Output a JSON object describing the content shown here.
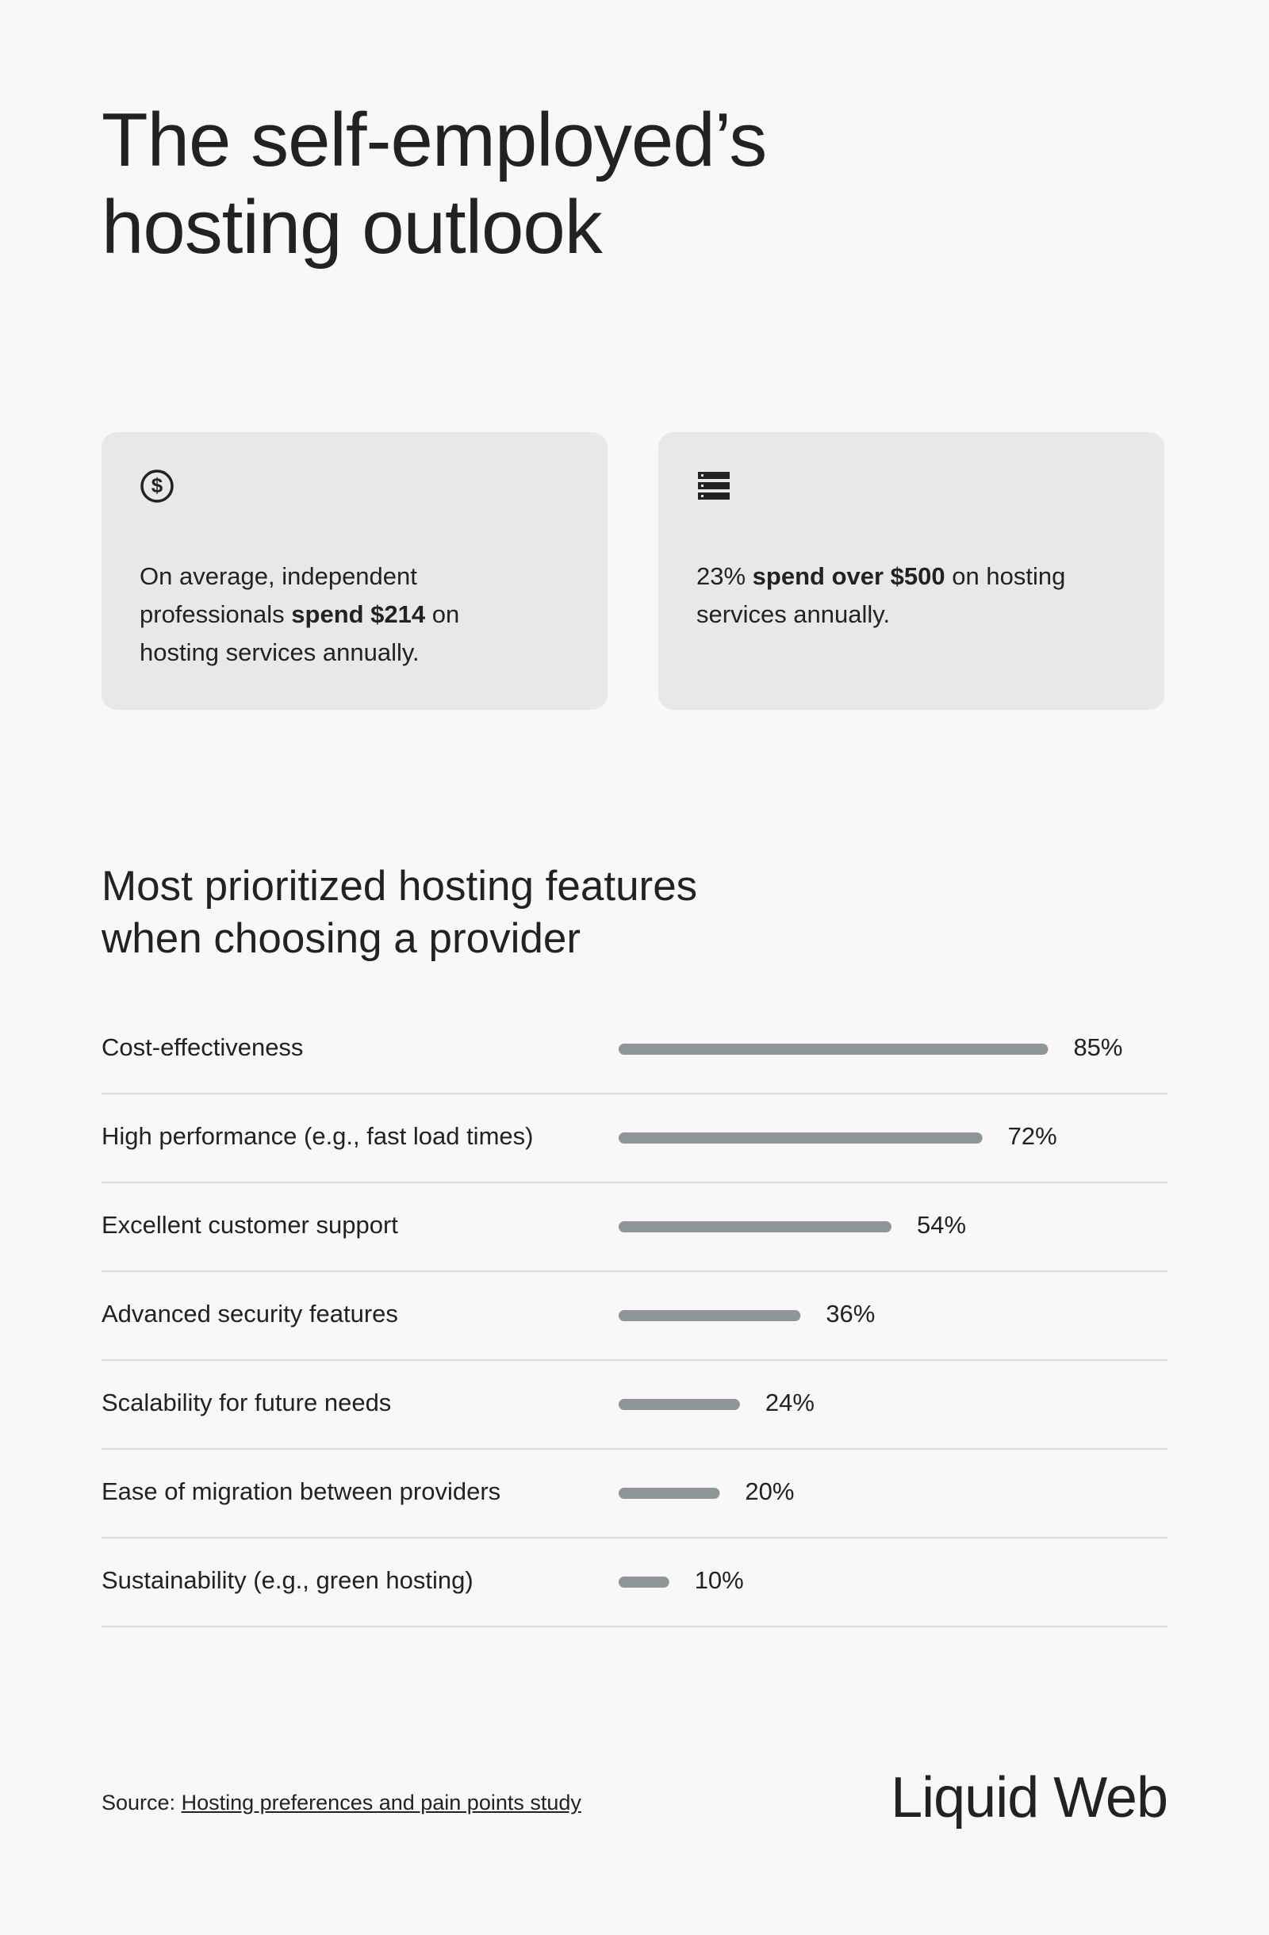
{
  "header": {
    "title": "The self-employed’s hosting outlook"
  },
  "cards": [
    {
      "parts": [
        "On average, independent professionals ",
        "spend $214",
        " on hosting services annually."
      ]
    },
    {
      "parts": [
        "23% ",
        "spend over $500",
        " on hosting services annually."
      ]
    }
  ],
  "chart_data": {
    "type": "bar",
    "orientation": "horizontal",
    "title": "Most prioritized hosting features when choosing a provider",
    "categories": [
      "Cost-effectiveness",
      "High performance (e.g., fast load times)",
      "Excellent customer support",
      "Advanced security features",
      "Scalability for future needs",
      "Ease of migration between providers",
      "Sustainability (e.g., green hosting)"
    ],
    "values": [
      85,
      72,
      54,
      36,
      24,
      20,
      10
    ],
    "value_labels": [
      "85%",
      "72%",
      "54%",
      "36%",
      "24%",
      "20%",
      "10%"
    ],
    "color": "#8f969a"
  },
  "footer": {
    "source_label": "Source:",
    "source_link": "Hosting preferences and pain points study",
    "brand": "Liquid Web"
  }
}
